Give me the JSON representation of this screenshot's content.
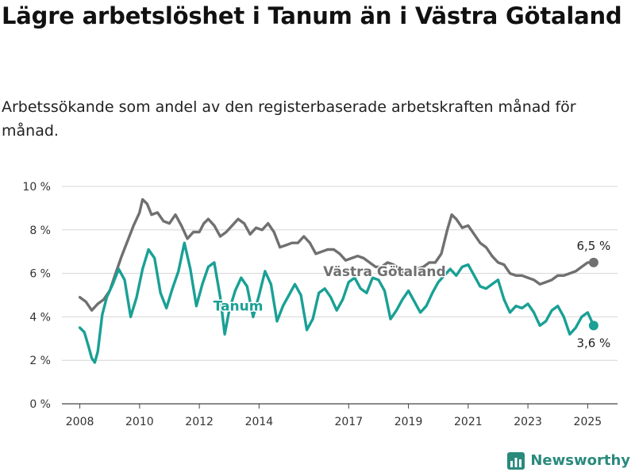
{
  "title": "Lägre arbetslöshet i Tanum än i Västra Götaland",
  "subtitle": "Arbetssökande som andel av den registerbaserade arbetskraften månad för månad.",
  "brand": {
    "name": "Newsworthy",
    "color": "#2a8a7c"
  },
  "chart_data": {
    "type": "line",
    "title": "Lägre arbetslöshet i Tanum än i Västra Götaland",
    "subtitle": "Arbetssökande som andel av den registerbaserade arbetskraften månad för månad.",
    "xlabel": "",
    "ylabel": "",
    "ylim": [
      0,
      10
    ],
    "xlim": [
      2007.4,
      2026.0
    ],
    "grid": true,
    "yticks": [
      0,
      2,
      4,
      6,
      8,
      10
    ],
    "ytick_labels": [
      "0 %",
      "2 %",
      "4 %",
      "6 %",
      "8 %",
      "10 %"
    ],
    "xticks": [
      2008,
      2010,
      2012,
      2014,
      2017,
      2019,
      2021,
      2023,
      2025
    ],
    "xtick_labels": [
      "2008",
      "2010",
      "2012",
      "2014",
      "2017",
      "2019",
      "2021",
      "2023",
      "2025"
    ],
    "series": [
      {
        "name": "Västra Götaland",
        "color": "#707070",
        "end_label": "6,5 %",
        "points": [
          [
            2008.0,
            4.9
          ],
          [
            2008.2,
            4.7
          ],
          [
            2008.4,
            4.3
          ],
          [
            2008.6,
            4.6
          ],
          [
            2008.8,
            4.8
          ],
          [
            2009.0,
            5.2
          ],
          [
            2009.2,
            6.0
          ],
          [
            2009.4,
            6.8
          ],
          [
            2009.6,
            7.5
          ],
          [
            2009.8,
            8.2
          ],
          [
            2010.0,
            8.8
          ],
          [
            2010.1,
            9.4
          ],
          [
            2010.25,
            9.2
          ],
          [
            2010.4,
            8.7
          ],
          [
            2010.6,
            8.8
          ],
          [
            2010.8,
            8.4
          ],
          [
            2011.0,
            8.3
          ],
          [
            2011.2,
            8.7
          ],
          [
            2011.4,
            8.2
          ],
          [
            2011.6,
            7.6
          ],
          [
            2011.8,
            7.9
          ],
          [
            2012.0,
            7.9
          ],
          [
            2012.15,
            8.3
          ],
          [
            2012.3,
            8.5
          ],
          [
            2012.5,
            8.2
          ],
          [
            2012.7,
            7.7
          ],
          [
            2012.9,
            7.9
          ],
          [
            2013.1,
            8.2
          ],
          [
            2013.3,
            8.5
          ],
          [
            2013.5,
            8.3
          ],
          [
            2013.7,
            7.8
          ],
          [
            2013.9,
            8.1
          ],
          [
            2014.1,
            8.0
          ],
          [
            2014.3,
            8.3
          ],
          [
            2014.5,
            7.9
          ],
          [
            2014.7,
            7.2
          ],
          [
            2014.9,
            7.3
          ],
          [
            2015.1,
            7.4
          ],
          [
            2015.3,
            7.4
          ],
          [
            2015.5,
            7.7
          ],
          [
            2015.7,
            7.4
          ],
          [
            2015.9,
            6.9
          ],
          [
            2016.1,
            7.0
          ],
          [
            2016.3,
            7.1
          ],
          [
            2016.5,
            7.1
          ],
          [
            2016.7,
            6.9
          ],
          [
            2016.9,
            6.6
          ],
          [
            2017.1,
            6.7
          ],
          [
            2017.3,
            6.8
          ],
          [
            2017.5,
            6.7
          ],
          [
            2017.7,
            6.5
          ],
          [
            2017.9,
            6.3
          ],
          [
            2018.1,
            6.3
          ],
          [
            2018.3,
            6.5
          ],
          [
            2018.5,
            6.4
          ],
          [
            2018.7,
            6.2
          ],
          [
            2018.9,
            5.9
          ],
          [
            2019.1,
            6.0
          ],
          [
            2019.3,
            6.2
          ],
          [
            2019.5,
            6.3
          ],
          [
            2019.7,
            6.5
          ],
          [
            2019.9,
            6.5
          ],
          [
            2020.1,
            6.9
          ],
          [
            2020.3,
            8.0
          ],
          [
            2020.45,
            8.7
          ],
          [
            2020.6,
            8.5
          ],
          [
            2020.8,
            8.1
          ],
          [
            2021.0,
            8.2
          ],
          [
            2021.2,
            7.8
          ],
          [
            2021.4,
            7.4
          ],
          [
            2021.6,
            7.2
          ],
          [
            2021.8,
            6.8
          ],
          [
            2022.0,
            6.5
          ],
          [
            2022.2,
            6.4
          ],
          [
            2022.4,
            6.0
          ],
          [
            2022.6,
            5.9
          ],
          [
            2022.8,
            5.9
          ],
          [
            2023.0,
            5.8
          ],
          [
            2023.2,
            5.7
          ],
          [
            2023.4,
            5.5
          ],
          [
            2023.6,
            5.6
          ],
          [
            2023.8,
            5.7
          ],
          [
            2024.0,
            5.9
          ],
          [
            2024.2,
            5.9
          ],
          [
            2024.4,
            6.0
          ],
          [
            2024.6,
            6.1
          ],
          [
            2024.8,
            6.3
          ],
          [
            2025.0,
            6.5
          ],
          [
            2025.2,
            6.5
          ]
        ]
      },
      {
        "name": "Tanum",
        "color": "#1aa095",
        "end_label": "3,6 %",
        "points": [
          [
            2008.0,
            3.5
          ],
          [
            2008.15,
            3.3
          ],
          [
            2008.3,
            2.6
          ],
          [
            2008.4,
            2.1
          ],
          [
            2008.5,
            1.9
          ],
          [
            2008.6,
            2.4
          ],
          [
            2008.75,
            4.1
          ],
          [
            2008.9,
            4.9
          ],
          [
            2009.1,
            5.5
          ],
          [
            2009.3,
            6.2
          ],
          [
            2009.5,
            5.7
          ],
          [
            2009.7,
            4.0
          ],
          [
            2009.9,
            4.9
          ],
          [
            2010.1,
            6.2
          ],
          [
            2010.3,
            7.1
          ],
          [
            2010.5,
            6.7
          ],
          [
            2010.7,
            5.1
          ],
          [
            2010.9,
            4.4
          ],
          [
            2011.1,
            5.3
          ],
          [
            2011.3,
            6.1
          ],
          [
            2011.5,
            7.4
          ],
          [
            2011.7,
            6.2
          ],
          [
            2011.9,
            4.5
          ],
          [
            2012.1,
            5.5
          ],
          [
            2012.3,
            6.3
          ],
          [
            2012.5,
            6.5
          ],
          [
            2012.7,
            4.9
          ],
          [
            2012.85,
            3.2
          ],
          [
            2013.0,
            4.3
          ],
          [
            2013.2,
            5.2
          ],
          [
            2013.4,
            5.8
          ],
          [
            2013.6,
            5.4
          ],
          [
            2013.8,
            4.0
          ],
          [
            2014.0,
            5.0
          ],
          [
            2014.2,
            6.1
          ],
          [
            2014.4,
            5.5
          ],
          [
            2014.6,
            3.8
          ],
          [
            2014.8,
            4.5
          ],
          [
            2015.0,
            5.0
          ],
          [
            2015.2,
            5.5
          ],
          [
            2015.4,
            5.0
          ],
          [
            2015.6,
            3.4
          ],
          [
            2015.8,
            3.9
          ],
          [
            2016.0,
            5.1
          ],
          [
            2016.2,
            5.3
          ],
          [
            2016.4,
            4.9
          ],
          [
            2016.6,
            4.3
          ],
          [
            2016.8,
            4.8
          ],
          [
            2017.0,
            5.6
          ],
          [
            2017.2,
            5.8
          ],
          [
            2017.4,
            5.3
          ],
          [
            2017.6,
            5.1
          ],
          [
            2017.8,
            5.8
          ],
          [
            2018.0,
            5.7
          ],
          [
            2018.2,
            5.2
          ],
          [
            2018.4,
            3.9
          ],
          [
            2018.6,
            4.3
          ],
          [
            2018.8,
            4.8
          ],
          [
            2019.0,
            5.2
          ],
          [
            2019.2,
            4.7
          ],
          [
            2019.4,
            4.2
          ],
          [
            2019.6,
            4.5
          ],
          [
            2019.8,
            5.1
          ],
          [
            2020.0,
            5.6
          ],
          [
            2020.2,
            5.9
          ],
          [
            2020.4,
            6.2
          ],
          [
            2020.6,
            5.9
          ],
          [
            2020.8,
            6.3
          ],
          [
            2021.0,
            6.4
          ],
          [
            2021.2,
            5.9
          ],
          [
            2021.4,
            5.4
          ],
          [
            2021.6,
            5.3
          ],
          [
            2021.8,
            5.5
          ],
          [
            2022.0,
            5.7
          ],
          [
            2022.2,
            4.8
          ],
          [
            2022.4,
            4.2
          ],
          [
            2022.6,
            4.5
          ],
          [
            2022.8,
            4.4
          ],
          [
            2023.0,
            4.6
          ],
          [
            2023.2,
            4.2
          ],
          [
            2023.4,
            3.6
          ],
          [
            2023.6,
            3.8
          ],
          [
            2023.8,
            4.3
          ],
          [
            2024.0,
            4.5
          ],
          [
            2024.2,
            4.0
          ],
          [
            2024.4,
            3.2
          ],
          [
            2024.6,
            3.5
          ],
          [
            2024.8,
            4.0
          ],
          [
            2025.0,
            4.2
          ],
          [
            2025.2,
            3.6
          ]
        ]
      }
    ]
  }
}
